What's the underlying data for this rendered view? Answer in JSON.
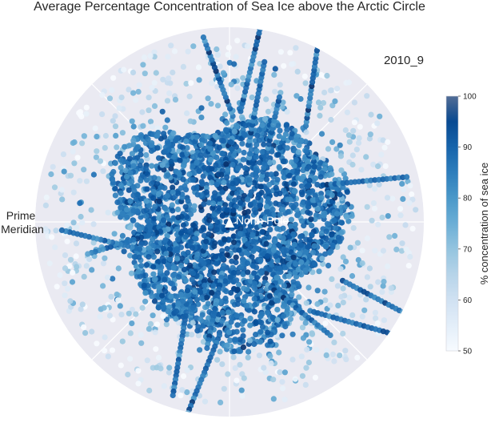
{
  "chart_data": {
    "type": "scatter",
    "projection": "polar (north polar stereographic)",
    "title": "Average Percentage Concentration of Sea Ice above the Arctic Circle",
    "period_label": "2010_9",
    "center_marker_label": "North Pole",
    "prime_meridian_label": [
      "Prime",
      "Meridian"
    ],
    "colorbar": {
      "label": "% concentration of sea ice",
      "range": [
        50,
        100
      ],
      "ticks": [
        50,
        60,
        70,
        80,
        90,
        100
      ],
      "colormap": "Blues"
    },
    "grid": true,
    "meridian_spokes_deg": [
      0,
      45,
      90,
      135,
      180,
      225,
      270,
      315
    ],
    "colors": {
      "panel_background": "#eaeaf2",
      "gridline": "#ffffff",
      "low_concentration": "#f7fbff",
      "high_concentration": "#08306b",
      "title_text": "#262626"
    },
    "point_distribution": {
      "pack_ice_core_radius_fraction": 0.5,
      "marginal_ice_extent_fraction": 0.98,
      "core_mean_concentration": 92,
      "edge_mean_concentration": 55
    }
  }
}
